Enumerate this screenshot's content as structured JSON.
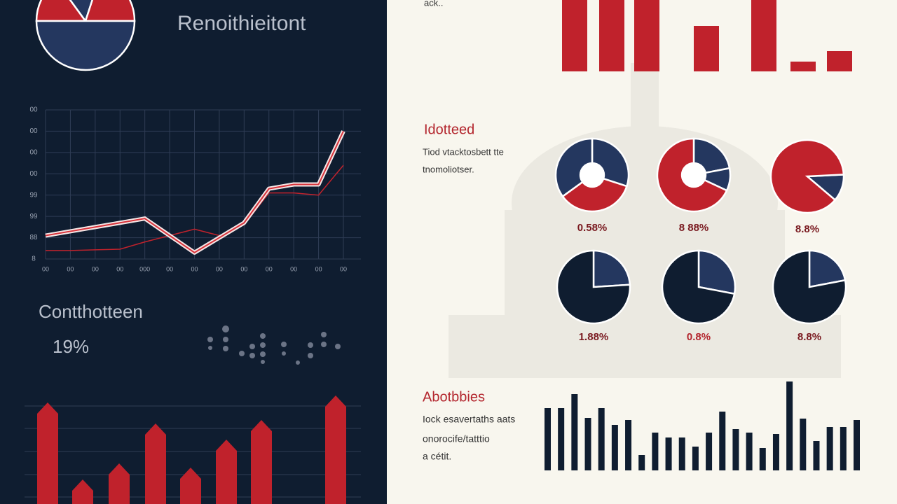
{
  "left": {
    "title": "Renoithieitont",
    "pie": {
      "values": [
        15,
        15,
        20,
        50
      ],
      "colors": [
        "#c0222c",
        "#24375f",
        "#c0222c",
        "#24375f"
      ]
    },
    "line_chart": {
      "ylim": [
        0,
        70
      ],
      "yticks": [
        {
          "value": 0,
          "label": "8"
        },
        {
          "value": 10,
          "label": "88"
        },
        {
          "value": 20,
          "label": "99"
        },
        {
          "value": 30,
          "label": "99"
        },
        {
          "value": 40,
          "label": "00"
        },
        {
          "value": 50,
          "label": "00"
        },
        {
          "value": 60,
          "label": "00"
        },
        {
          "value": 70,
          "label": "00"
        }
      ],
      "categories": [
        "00",
        "00",
        "00",
        "00",
        "000",
        "00",
        "00",
        "00",
        "00",
        "00",
        "00",
        "00",
        "00"
      ],
      "series": [
        {
          "color": "#d8323a",
          "values": [
            11,
            13,
            15,
            17,
            19,
            11,
            3,
            10,
            17,
            33,
            35,
            35,
            60
          ]
        },
        {
          "color": "#c0222c",
          "values": [
            4,
            4,
            4.3,
            4.6,
            8,
            11,
            14,
            11,
            16,
            31,
            31,
            30,
            44
          ]
        }
      ]
    },
    "stat_label": "Contthotteen",
    "stat_value": "19%",
    "bars": {
      "color": "#c0222c",
      "values": [
        145,
        35,
        58,
        115,
        52,
        92,
        120,
        155
      ]
    }
  },
  "right": {
    "top_note": "ack..",
    "top_bars": {
      "color": "#c0222c",
      "values": [
        102,
        102,
        102,
        65,
        102,
        14,
        29
      ]
    },
    "section1": {
      "heading": "Idotteed",
      "lines": [
        "Tiod vtacktosbett tte",
        "tnomoliotser."
      ]
    },
    "pies": [
      {
        "values": [
          30,
          35,
          35
        ],
        "colors": [
          "#24375f",
          "#c0222c",
          "#24375f"
        ],
        "hole": true,
        "label": "0.58%"
      },
      {
        "values": [
          22,
          10,
          68
        ],
        "colors": [
          "#24375f",
          "#24375f",
          "#c0222c"
        ],
        "hole": true,
        "label": "8 88%"
      },
      {
        "values": [
          12,
          88
        ],
        "colors": [
          "#24375f",
          "#c0222c"
        ],
        "hole": false,
        "label": "8.8%"
      },
      {
        "values": [
          24,
          76
        ],
        "colors": [
          "#24375f",
          "#0f1d30"
        ],
        "hole": false,
        "label": "1.88%"
      },
      {
        "values": [
          28,
          72
        ],
        "colors": [
          "#24375f",
          "#0f1d30"
        ],
        "hole": false,
        "label": "0.8%"
      },
      {
        "values": [
          22,
          78
        ],
        "colors": [
          "#24375f",
          "#0f1d30"
        ],
        "hole": false,
        "label": "8.8%"
      }
    ],
    "section2": {
      "heading": "Abotbbies",
      "lines": [
        "Iock esavertaths aats",
        "onorocife/tatttio",
        "a cétit."
      ]
    },
    "bottom_bars": {
      "color": "#0f1d30",
      "values": [
        89,
        89,
        109,
        75,
        89,
        65,
        72,
        22,
        54,
        47,
        47,
        34,
        54,
        84,
        59,
        54,
        32,
        52,
        127,
        74,
        42,
        62,
        62,
        72
      ]
    }
  }
}
